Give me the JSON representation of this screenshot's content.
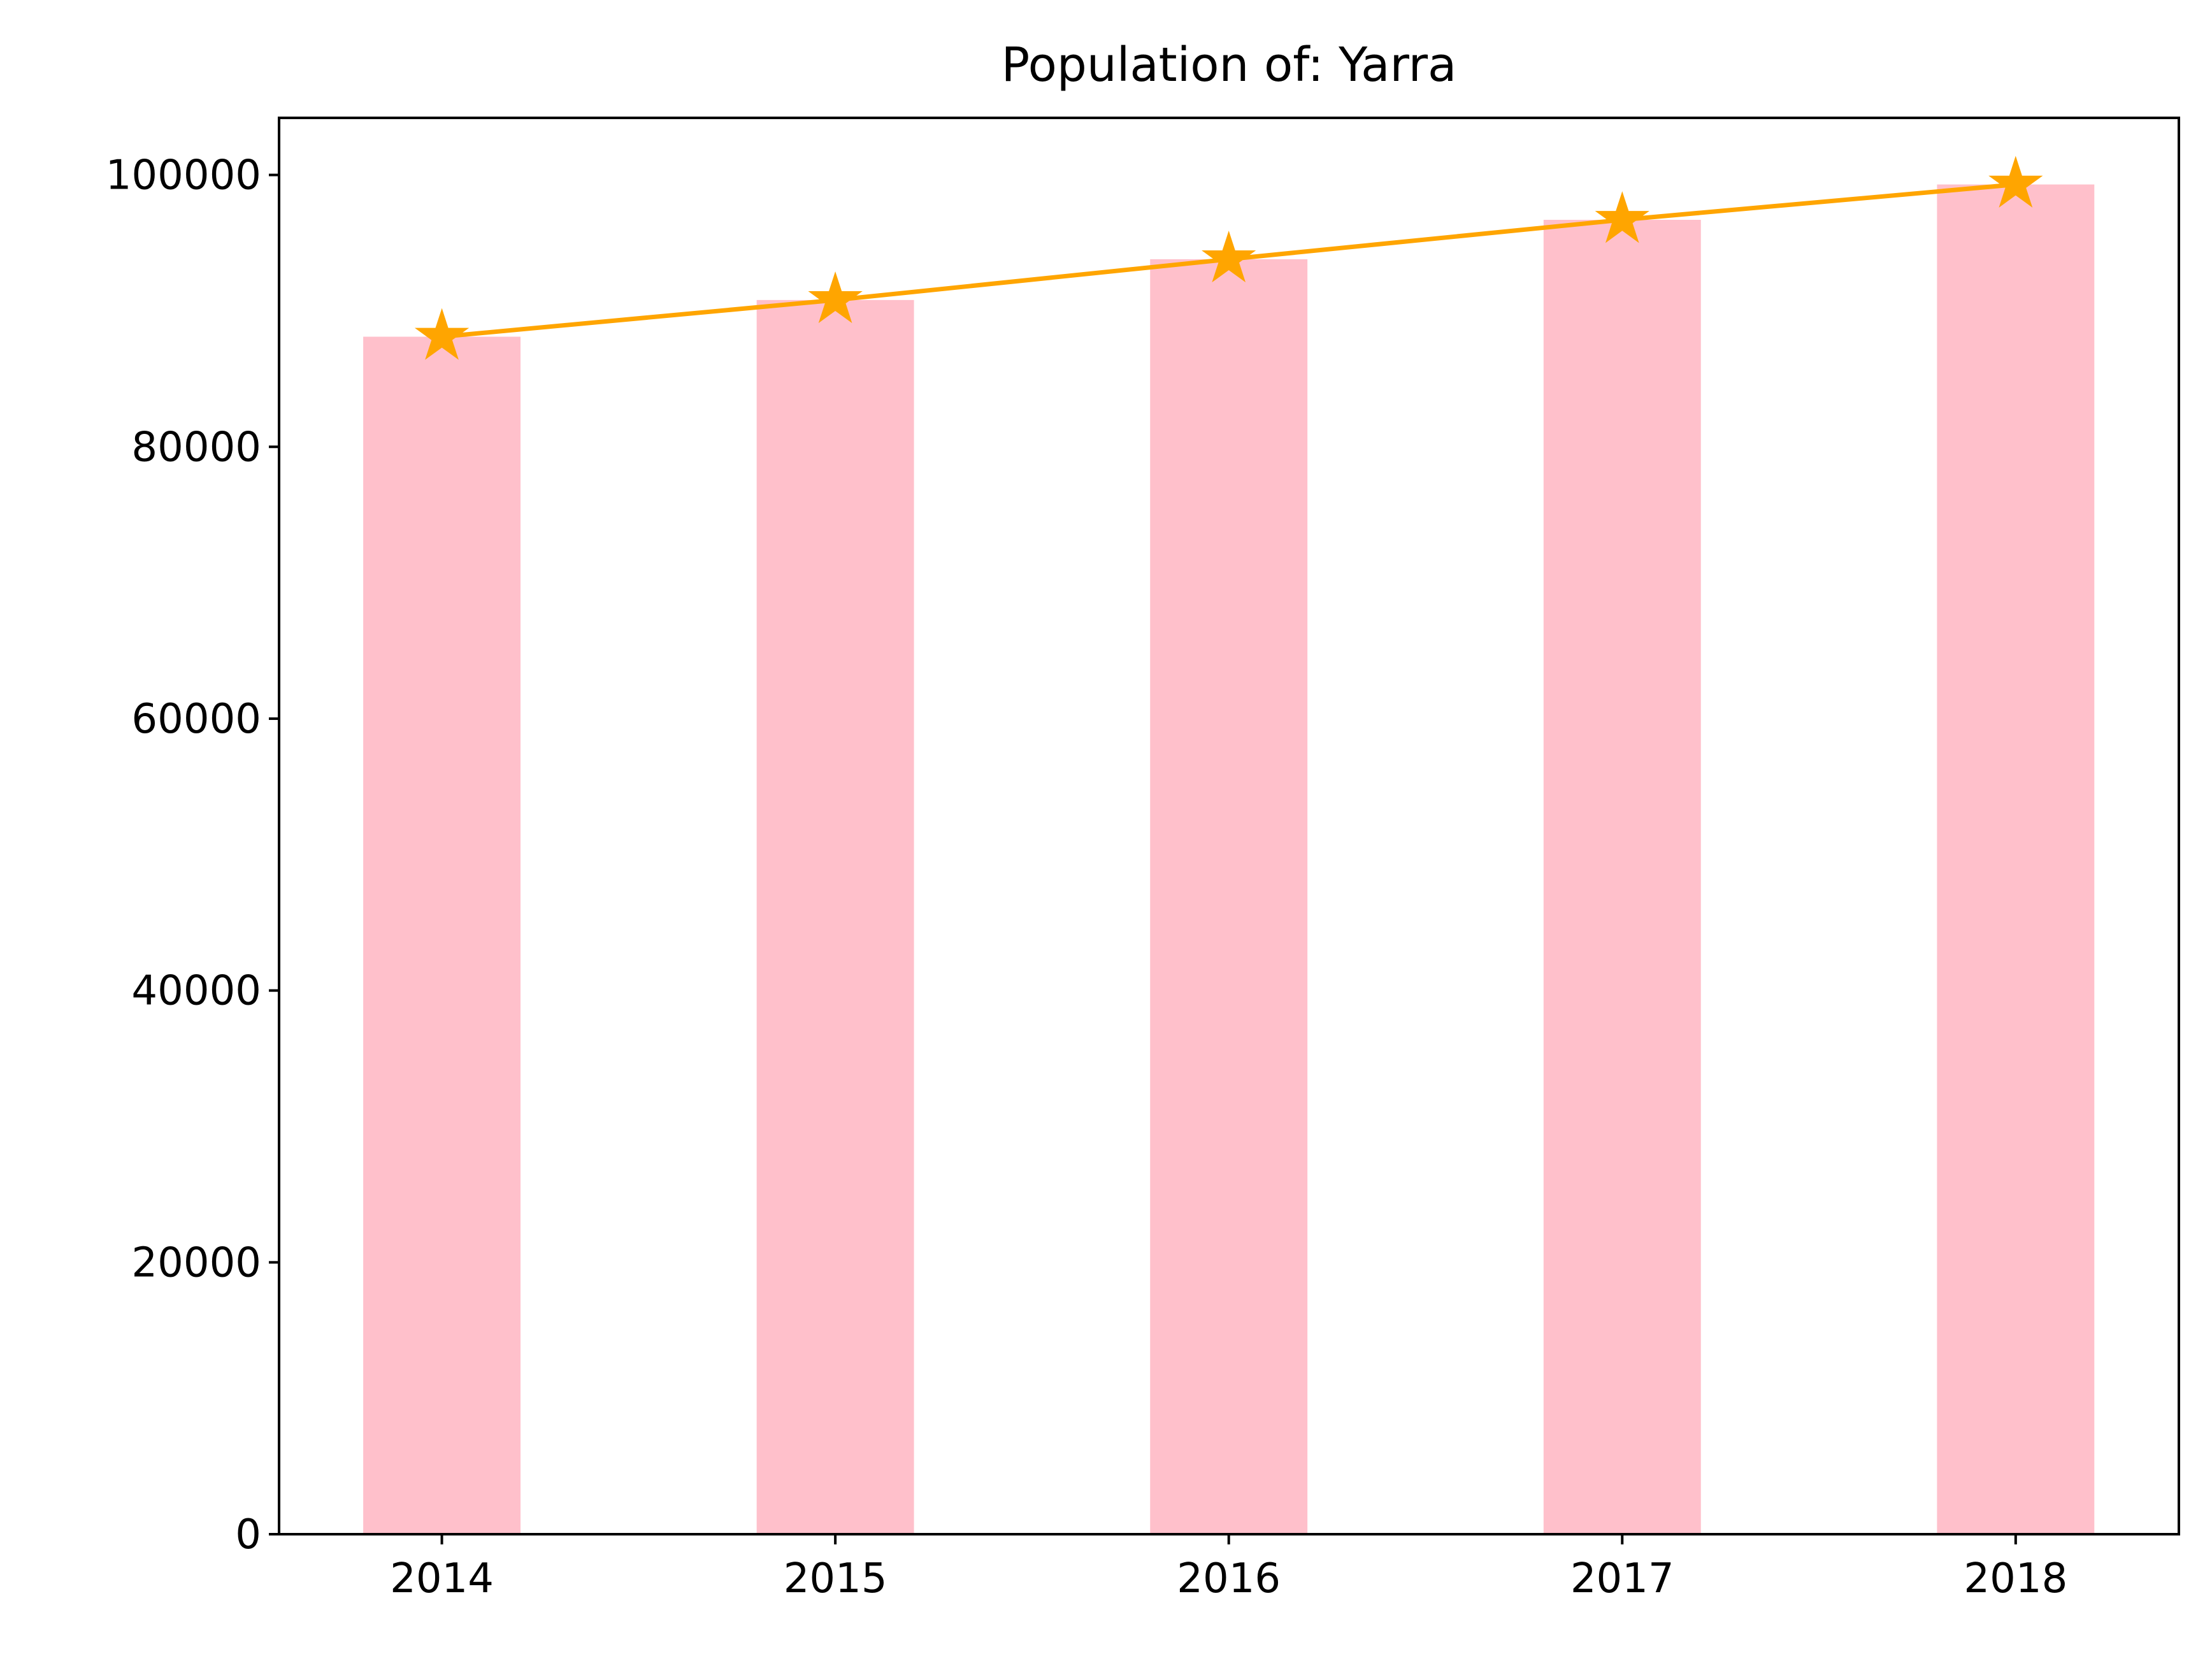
{
  "chart_data": {
    "type": "bar",
    "title": "Population of: Yarra",
    "xlabel": "",
    "ylabel": "",
    "categories": [
      "2014",
      "2015",
      "2016",
      "2017",
      "2018"
    ],
    "series": [
      {
        "kind": "bar",
        "values": [
          88100,
          90800,
          93800,
          96700,
          99300
        ]
      },
      {
        "kind": "line",
        "marker": "star",
        "values": [
          88100,
          90800,
          93800,
          96700,
          99300
        ]
      }
    ],
    "ylim": [
      0,
      104200
    ],
    "yticks": [
      0,
      20000,
      40000,
      60000,
      80000,
      100000
    ],
    "ytick_labels": [
      "0",
      "20000",
      "40000",
      "60000",
      "80000",
      "100000"
    ],
    "grid": false,
    "legend": "none",
    "colors": {
      "bar": "#ffc0cb",
      "line": "#ffa500"
    }
  }
}
